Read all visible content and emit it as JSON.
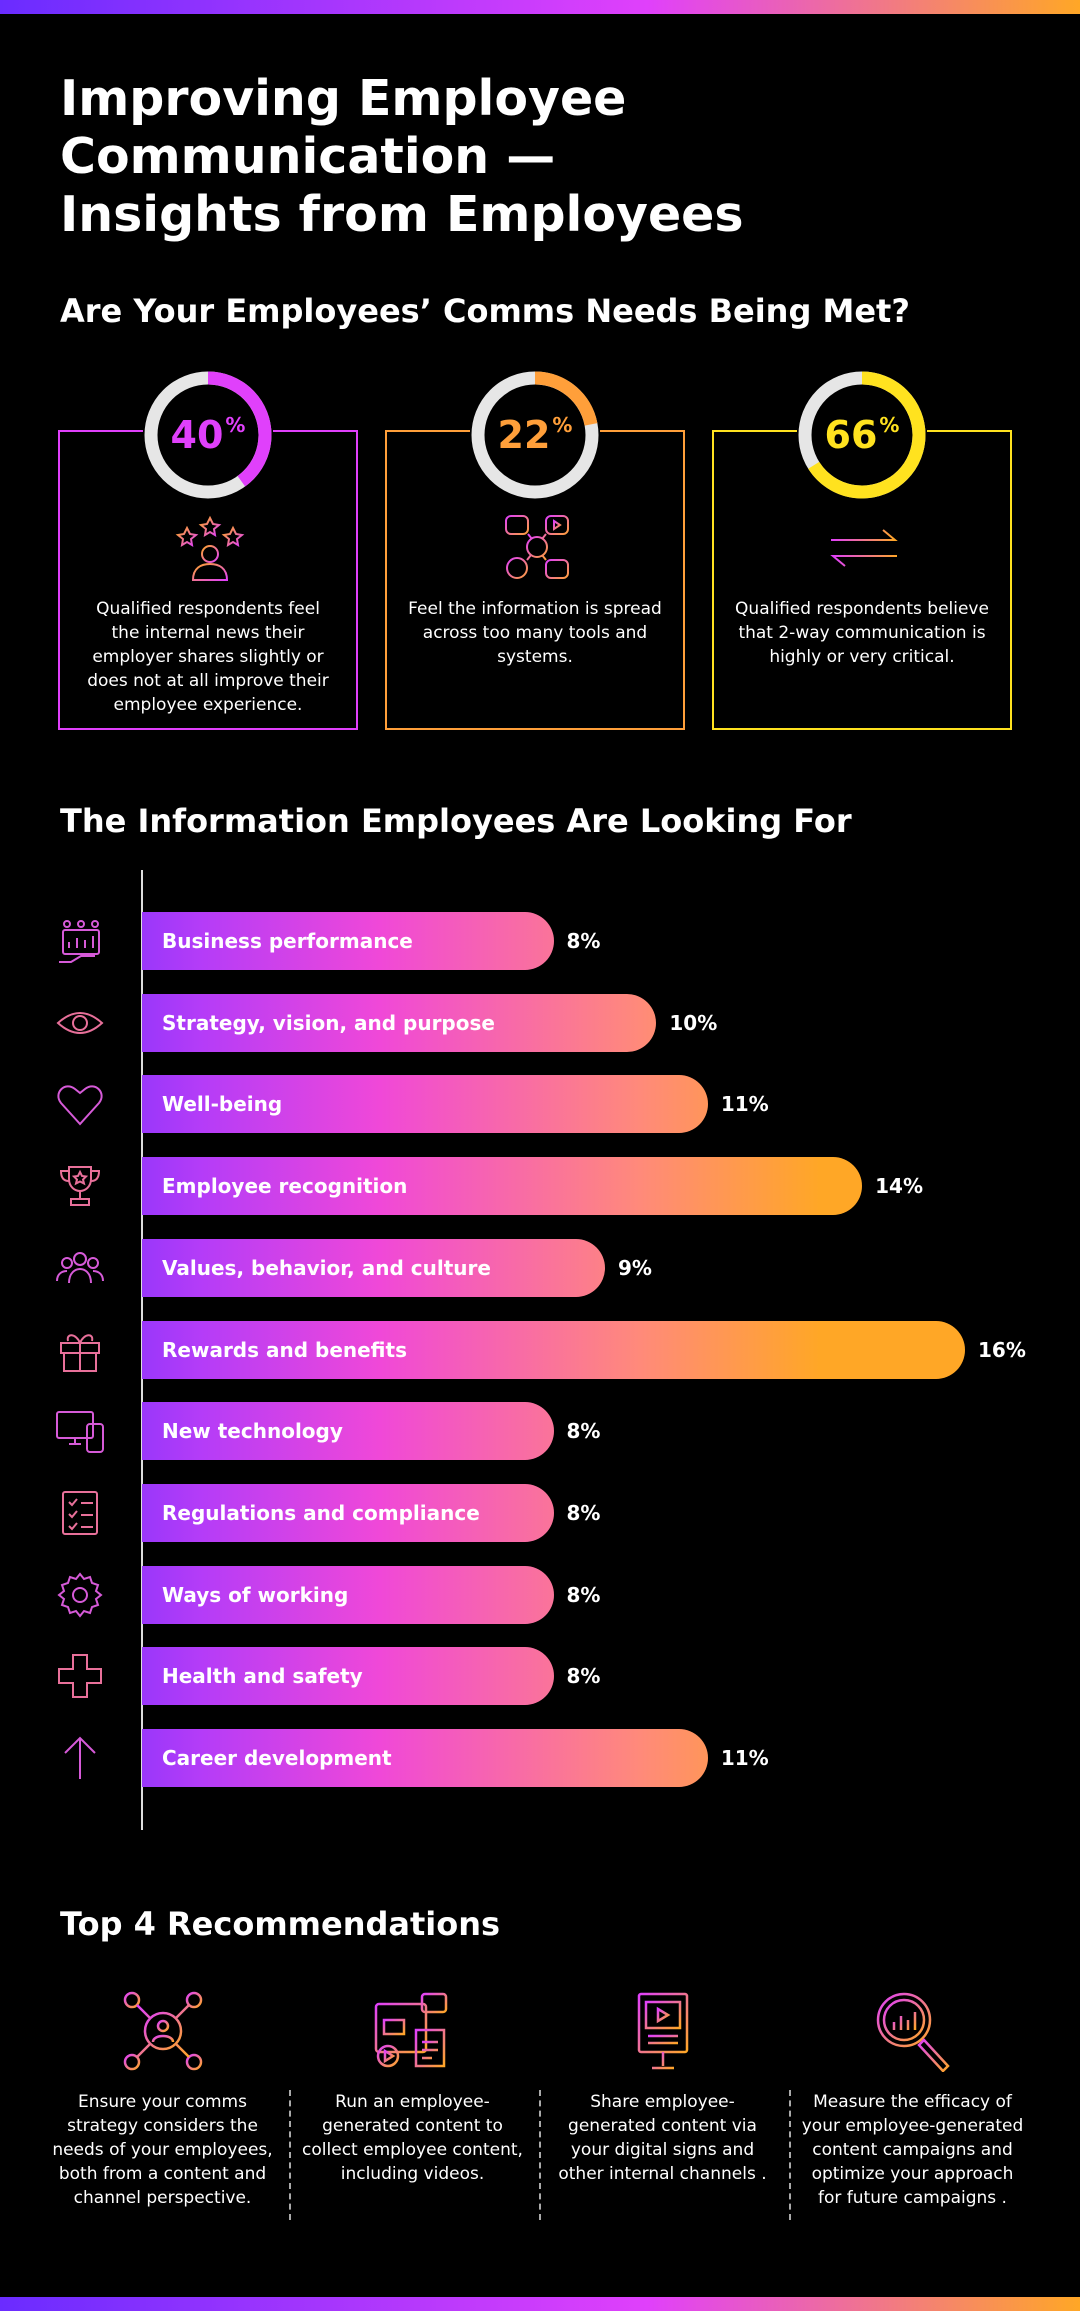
{
  "title_line1": "Improving Employee Communication —",
  "title_line2": "Insights from Employees",
  "section1": {
    "heading": "Are Your Employees’ Comms Needs Being Met?",
    "cards": [
      {
        "value": 40,
        "value_text": "40",
        "unit": "%",
        "color": "#e040fb",
        "icon": "user-stars-icon",
        "text": "Qualified respondents feel the internal news their employer shares slightly or does not at all improve their employee experience."
      },
      {
        "value": 22,
        "value_text": "22",
        "unit": "%",
        "color": "#ff9f3a",
        "icon": "apps-info-icon",
        "text": "Feel the information is spread across too many tools and systems."
      },
      {
        "value": 66,
        "value_text": "66",
        "unit": "%",
        "color": "#ffe21f",
        "icon": "two-way-arrows-icon",
        "text": "Qualified respondents believe that 2-way communication is highly or very critical."
      }
    ]
  },
  "section2": {
    "heading": "The Information Employees Are Looking For"
  },
  "chart_data": {
    "type": "bar",
    "orientation": "horizontal",
    "categories": [
      "Business performance",
      "Strategy, vision, and purpose",
      "Well-being",
      "Employee recognition",
      "Values, behavior, and culture",
      "Rewards and benefits",
      "New technology",
      "Regulations and compliance",
      "Ways of working",
      "Health and safety",
      "Career development"
    ],
    "values": [
      8,
      10,
      11,
      14,
      9,
      16,
      8,
      8,
      8,
      8,
      11
    ],
    "value_labels": [
      "8%",
      "10%",
      "11%",
      "14%",
      "9%",
      "16%",
      "8%",
      "8%",
      "8%",
      "8%",
      "11%"
    ],
    "icons": [
      "chart-hand-icon",
      "eye-icon",
      "heart-icon",
      "trophy-icon",
      "people-icon",
      "gift-icon",
      "devices-icon",
      "checklist-icon",
      "gear-icon",
      "cross-icon",
      "arrow-up-icon"
    ],
    "xlim": [
      0,
      16
    ],
    "colors": {
      "start": "#5b2bff",
      "end": "#ffa726"
    }
  },
  "section3": {
    "heading": "Top 4 Recommendations",
    "items": [
      {
        "icon": "network-person-icon",
        "text": "Ensure your comms strategy considers the needs of your employees, both from a content and channel perspective."
      },
      {
        "icon": "media-content-icon",
        "text": "Run an employee-generated content to collect employee content, including videos."
      },
      {
        "icon": "digital-sign-icon",
        "text": "Share employee-generated content via your digital signs and other internal channels ."
      },
      {
        "icon": "magnifier-chart-icon",
        "text": "Measure the efficacy of your employee-generated content campaigns and optimize your approach for future campaigns ."
      }
    ]
  }
}
